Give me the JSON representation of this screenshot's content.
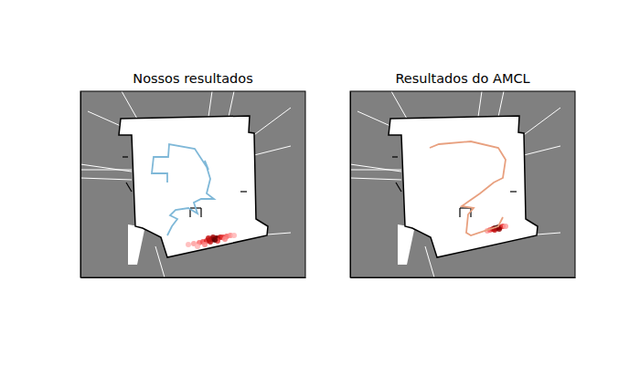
{
  "chart_data": [
    {
      "type": "map",
      "title": "Nossos resultados",
      "xlim": [
        0,
        246
      ],
      "ylim": [
        204,
        0
      ],
      "tick_labels": false,
      "series": [
        {
          "color": "#7fb8d8",
          "line_style": "solid",
          "x": [
            95,
            100,
            106,
            98,
            104,
            118,
            128,
            124,
            132,
            146,
            138,
            142,
            136,
            140,
            125,
            97,
            96,
            80,
            78,
            95,
            95
          ],
          "values": [
            158,
            148,
            140,
            136,
            130,
            128,
            134,
            122,
            118,
            118,
            112,
            96,
            76,
            86,
            63,
            58,
            72,
            72,
            90,
            90,
            100
          ]
        }
      ],
      "particles": {
        "x": [
          118,
          124,
          130,
          134,
          138,
          141,
          144,
          146,
          148,
          150,
          153,
          156,
          160,
          164,
          168,
          128,
          136,
          142,
          150,
          158,
          145,
          140,
          147
        ],
        "y": [
          168,
          167,
          166,
          165,
          164,
          163,
          162,
          162,
          161,
          161,
          160,
          160,
          159,
          158,
          158,
          170,
          168,
          165,
          164,
          162,
          160,
          161,
          163
        ],
        "density": [
          0.1,
          0.15,
          0.25,
          0.35,
          0.5,
          0.7,
          0.95,
          1,
          0.9,
          0.8,
          0.6,
          0.45,
          0.3,
          0.2,
          0.1,
          0.1,
          0.2,
          0.6,
          0.4,
          0.2,
          0.7,
          0.6,
          0.85
        ]
      }
    },
    {
      "type": "map",
      "title": "Resultados do AMCL",
      "xlim": [
        0,
        246
      ],
      "ylim": [
        204,
        0
      ],
      "tick_labels": false,
      "series": [
        {
          "color": "#e8a07f",
          "line_style": "solid",
          "x": [
            87,
            97,
            132,
            162,
            170,
            167,
            157,
            142,
            122,
            135,
            129,
            127,
            132,
            162,
            167
          ],
          "values": [
            62,
            58,
            55,
            62,
            75,
            95,
            100,
            112,
            126,
            128,
            135,
            155,
            158,
            148,
            138
          ]
        }
      ],
      "particles": {
        "x": [
          150,
          153,
          156,
          158,
          160,
          162,
          164,
          167,
          170,
          158,
          163
        ],
        "y": [
          153,
          152,
          151,
          150,
          150,
          149,
          149,
          148,
          148,
          152,
          151
        ],
        "density": [
          0.15,
          0.3,
          0.55,
          0.8,
          1,
          0.95,
          0.7,
          0.4,
          0.15,
          0.6,
          0.75
        ]
      }
    }
  ]
}
